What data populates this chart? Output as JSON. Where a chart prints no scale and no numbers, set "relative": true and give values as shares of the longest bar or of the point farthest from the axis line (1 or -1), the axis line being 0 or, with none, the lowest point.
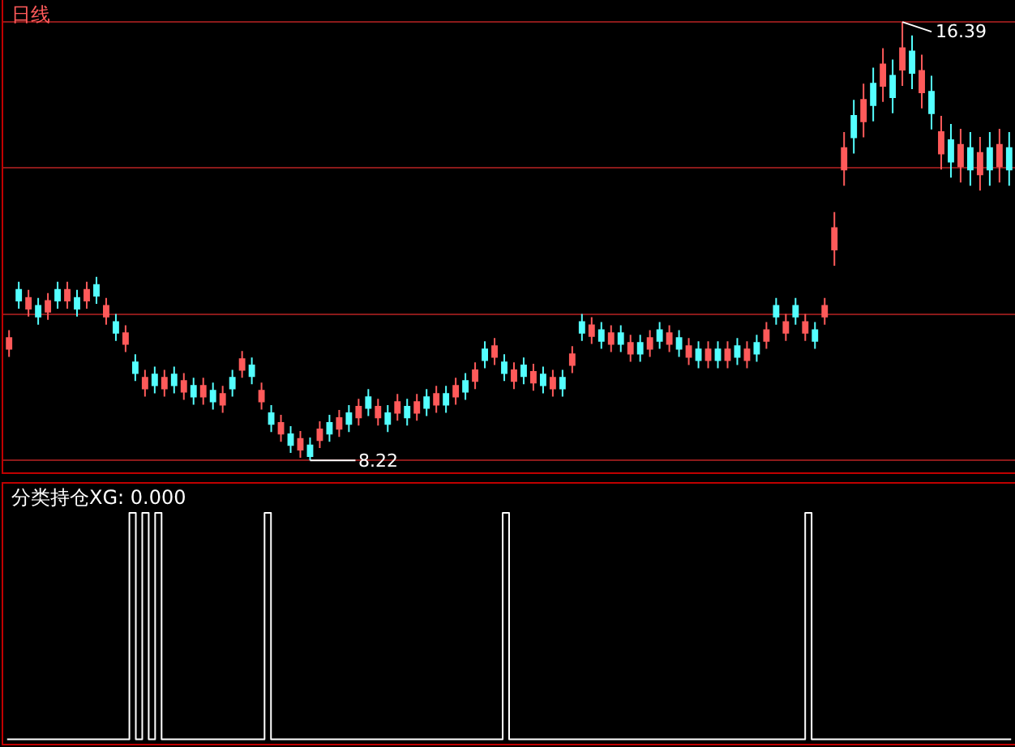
{
  "chart_data": [
    {
      "type": "candlestick",
      "title": "日线",
      "categories": [
        null,
        null,
        null,
        null,
        null,
        null,
        null,
        null,
        null,
        null,
        null,
        null,
        null,
        null,
        null,
        null,
        null,
        null,
        null,
        null,
        null,
        null,
        null,
        null,
        null,
        null,
        null,
        null,
        null,
        null,
        null,
        null,
        null,
        null,
        null,
        null,
        null,
        null,
        null,
        null,
        null,
        null,
        null,
        null,
        null,
        null,
        null,
        null,
        null,
        null,
        null,
        null,
        null,
        null,
        null,
        null,
        null,
        null,
        null,
        null,
        null,
        null,
        null,
        null,
        null,
        null,
        null,
        null,
        null,
        null,
        null,
        null,
        null,
        null,
        null,
        null,
        null,
        null,
        null,
        null,
        null,
        null,
        null,
        null,
        null,
        null,
        null,
        null,
        null,
        null,
        null,
        null,
        null,
        null,
        null,
        null,
        null,
        null,
        null,
        null,
        null,
        null,
        null,
        null
      ],
      "ohlc": [
        [
          10.3,
          10.65,
          10.15,
          10.5
        ],
        [
          11.4,
          11.55,
          11.05,
          11.2
        ],
        [
          11.05,
          11.4,
          10.9,
          11.25
        ],
        [
          11.1,
          11.25,
          10.75,
          10.9
        ],
        [
          10.99,
          11.34,
          10.84,
          11.19
        ],
        [
          11.4,
          11.55,
          11.05,
          11.2
        ],
        [
          11.2,
          11.55,
          11.05,
          11.4
        ],
        [
          11.25,
          11.4,
          10.9,
          11.05
        ],
        [
          11.2,
          11.55,
          11.05,
          11.4
        ],
        [
          11.49,
          11.64,
          11.14,
          11.29
        ],
        [
          10.9,
          11.25,
          10.75,
          11.1
        ],
        [
          10.8,
          10.95,
          10.45,
          10.6
        ],
        [
          10.39,
          10.74,
          10.24,
          10.59
        ],
        [
          10.05,
          10.2,
          9.7,
          9.85
        ],
        [
          9.56,
          9.91,
          9.41,
          9.76
        ],
        [
          9.82,
          9.97,
          9.47,
          9.62
        ],
        [
          9.56,
          9.91,
          9.41,
          9.76
        ],
        [
          9.82,
          9.97,
          9.47,
          9.62
        ],
        [
          9.5,
          9.85,
          9.35,
          9.7
        ],
        [
          9.61,
          9.76,
          9.26,
          9.41
        ],
        [
          9.41,
          9.76,
          9.26,
          9.61
        ],
        [
          9.52,
          9.67,
          9.17,
          9.32
        ],
        [
          9.26,
          9.61,
          9.11,
          9.46
        ],
        [
          9.76,
          9.91,
          9.41,
          9.56
        ],
        [
          9.91,
          10.26,
          9.76,
          10.11
        ],
        [
          9.99,
          10.14,
          9.64,
          9.79
        ],
        [
          9.32,
          9.67,
          9.17,
          9.52
        ],
        [
          9.1,
          9.25,
          8.75,
          8.9
        ],
        [
          8.72,
          9.07,
          8.57,
          8.92
        ],
        [
          8.71,
          8.86,
          8.36,
          8.51
        ],
        [
          8.42,
          8.77,
          8.27,
          8.62
        ],
        [
          8.5,
          8.65,
          8.22,
          8.3
        ],
        [
          8.6,
          8.95,
          8.45,
          8.8
        ],
        [
          8.92,
          9.07,
          8.57,
          8.72
        ],
        [
          8.81,
          9.16,
          8.66,
          9.01
        ],
        [
          9.1,
          9.25,
          8.75,
          8.9
        ],
        [
          9.02,
          9.37,
          8.87,
          9.22
        ],
        [
          9.4,
          9.55,
          9.05,
          9.2
        ],
        [
          9.02,
          9.37,
          8.87,
          9.22
        ],
        [
          9.1,
          9.25,
          8.75,
          8.9
        ],
        [
          9.11,
          9.46,
          8.96,
          9.31
        ],
        [
          9.22,
          9.37,
          8.87,
          9.02
        ],
        [
          9.11,
          9.46,
          8.96,
          9.31
        ],
        [
          9.4,
          9.55,
          9.05,
          9.2
        ],
        [
          9.26,
          9.61,
          9.11,
          9.46
        ],
        [
          9.46,
          9.61,
          9.11,
          9.26
        ],
        [
          9.41,
          9.76,
          9.26,
          9.61
        ],
        [
          9.7,
          9.85,
          9.35,
          9.5
        ],
        [
          9.7,
          10.05,
          9.55,
          9.9
        ],
        [
          10.29,
          10.44,
          9.94,
          10.09
        ],
        [
          10.15,
          10.5,
          10.0,
          10.35
        ],
        [
          10.05,
          10.2,
          9.7,
          9.85
        ],
        [
          9.7,
          10.05,
          9.55,
          9.9
        ],
        [
          9.99,
          10.14,
          9.64,
          9.79
        ],
        [
          9.67,
          10.02,
          9.52,
          9.87
        ],
        [
          9.82,
          9.97,
          9.47,
          9.62
        ],
        [
          9.56,
          9.91,
          9.41,
          9.76
        ],
        [
          9.76,
          9.91,
          9.41,
          9.56
        ],
        [
          10.0,
          10.35,
          9.85,
          10.2
        ],
        [
          10.8,
          10.95,
          10.45,
          10.6
        ],
        [
          10.54,
          10.89,
          10.39,
          10.74
        ],
        [
          10.65,
          10.8,
          10.3,
          10.45
        ],
        [
          10.39,
          10.74,
          10.24,
          10.59
        ],
        [
          10.59,
          10.74,
          10.24,
          10.39
        ],
        [
          10.21,
          10.56,
          10.06,
          10.41
        ],
        [
          10.41,
          10.56,
          10.06,
          10.21
        ],
        [
          10.3,
          10.65,
          10.15,
          10.5
        ],
        [
          10.65,
          10.8,
          10.3,
          10.45
        ],
        [
          10.39,
          10.74,
          10.24,
          10.59
        ],
        [
          10.5,
          10.65,
          10.15,
          10.3
        ],
        [
          10.15,
          10.5,
          10.0,
          10.35
        ],
        [
          10.29,
          10.44,
          9.94,
          10.09
        ],
        [
          10.09,
          10.44,
          9.94,
          10.29
        ],
        [
          10.29,
          10.44,
          9.94,
          10.09
        ],
        [
          10.09,
          10.44,
          9.94,
          10.29
        ],
        [
          10.35,
          10.5,
          10.0,
          10.15
        ],
        [
          10.09,
          10.44,
          9.94,
          10.29
        ],
        [
          10.41,
          10.56,
          10.06,
          10.21
        ],
        [
          10.45,
          10.8,
          10.3,
          10.65
        ],
        [
          11.1,
          11.25,
          10.75,
          10.9
        ],
        [
          10.6,
          10.95,
          10.45,
          10.8
        ],
        [
          11.1,
          11.25,
          10.75,
          10.9
        ],
        [
          10.6,
          10.95,
          10.45,
          10.8
        ],
        [
          10.65,
          10.8,
          10.3,
          10.45
        ],
        [
          10.9,
          11.25,
          10.75,
          11.1
        ],
        [
          12.15,
          12.85,
          11.85,
          12.55
        ],
        [
          13.64,
          14.34,
          13.34,
          14.04
        ],
        [
          14.64,
          14.94,
          13.94,
          14.24
        ],
        [
          14.54,
          15.24,
          14.24,
          14.94
        ],
        [
          15.24,
          15.54,
          14.54,
          14.84
        ],
        [
          15.2,
          15.9,
          14.9,
          15.6
        ],
        [
          15.39,
          15.69,
          14.69,
          14.99
        ],
        [
          15.5,
          16.39,
          15.2,
          15.9
        ],
        [
          15.84,
          16.14,
          15.14,
          15.44
        ],
        [
          15.08,
          15.78,
          14.78,
          15.48
        ],
        [
          15.09,
          15.39,
          14.39,
          14.69
        ],
        [
          13.94,
          14.64,
          13.64,
          14.34
        ],
        [
          14.19,
          14.49,
          13.49,
          13.79
        ],
        [
          13.7,
          14.4,
          13.4,
          14.1
        ],
        [
          14.04,
          14.34,
          13.34,
          13.64
        ],
        [
          13.55,
          14.25,
          13.25,
          13.95
        ],
        [
          14.04,
          14.34,
          13.34,
          13.64
        ],
        [
          13.7,
          14.4,
          13.4,
          14.1
        ],
        [
          14.04,
          14.34,
          13.34,
          13.64
        ]
      ],
      "ylim": [
        8.0,
        16.8
      ],
      "yticks": [
        {
          "value": 8.22,
          "label": null
        },
        {
          "value": 10.94,
          "label": null
        },
        {
          "value": 13.67,
          "label": null
        },
        {
          "value": 16.39,
          "label": null
        }
      ],
      "grid": "y",
      "annotations": [
        "16.39",
        "8.22"
      ]
    },
    {
      "type": "step",
      "title": "分类持仓XG: 0.000",
      "relative": true,
      "categories": [
        null,
        null,
        null,
        null,
        null,
        null,
        null,
        null,
        null,
        null,
        null,
        null,
        null,
        null,
        null,
        null,
        null,
        null,
        null,
        null,
        null,
        null,
        null,
        null,
        null,
        null,
        null,
        null,
        null,
        null,
        null,
        null,
        null,
        null,
        null,
        null,
        null,
        null,
        null,
        null,
        null,
        null,
        null,
        null,
        null,
        null,
        null,
        null,
        null,
        null,
        null,
        null,
        null,
        null,
        null,
        null,
        null,
        null,
        null,
        null,
        null,
        null,
        null,
        null,
        null,
        null,
        null,
        null,
        null,
        null,
        null,
        null,
        null,
        null,
        null,
        null,
        null,
        null,
        null,
        null,
        null,
        null,
        null,
        null,
        null,
        null,
        null,
        null,
        null,
        null,
        null,
        null,
        null,
        null,
        null,
        null,
        null,
        null,
        null,
        null,
        null,
        null,
        null,
        null,
        null,
        null,
        null,
        null,
        null,
        null,
        null,
        null,
        null,
        null,
        null,
        null,
        null,
        null,
        null,
        null,
        null,
        null,
        null,
        null,
        null,
        null,
        null,
        null,
        null,
        null,
        null,
        null,
        null,
        null,
        null,
        null,
        null,
        null,
        null,
        null,
        null,
        null,
        null,
        null,
        null,
        null,
        null,
        null,
        null,
        null,
        null,
        null,
        null,
        null,
        null,
        null,
        null
      ],
      "series": [
        {
          "color": "#ffffff",
          "values": [
            0,
            0,
            0,
            0,
            0,
            0,
            0,
            0,
            0,
            0,
            0,
            0,
            0,
            0,
            0,
            0,
            0,
            0,
            0,
            1,
            0,
            1,
            0,
            1,
            0,
            0,
            0,
            0,
            0,
            0,
            0,
            0,
            0,
            0,
            0,
            0,
            0,
            0,
            0,
            0,
            1,
            0,
            0,
            0,
            0,
            0,
            0,
            0,
            0,
            0,
            0,
            0,
            0,
            0,
            0,
            0,
            0,
            0,
            0,
            0,
            0,
            0,
            0,
            0,
            0,
            0,
            0,
            0,
            0,
            0,
            0,
            0,
            0,
            0,
            0,
            0,
            0,
            1,
            0,
            0,
            0,
            0,
            0,
            0,
            0,
            0,
            0,
            0,
            0,
            0,
            0,
            0,
            0,
            0,
            0,
            0,
            0,
            0,
            0,
            0,
            0,
            0,
            0,
            0,
            0,
            0,
            0,
            0,
            0,
            0,
            0,
            0,
            0,
            0,
            0,
            0,
            0,
            0,
            0,
            0,
            0,
            0,
            0,
            0,
            1,
            0,
            0,
            0,
            0,
            0,
            0,
            0,
            0,
            0,
            0,
            0,
            0,
            0,
            0,
            0,
            0,
            0,
            0,
            0,
            0,
            0,
            0,
            0,
            0,
            0,
            0,
            0,
            0,
            0,
            0,
            0,
            0
          ]
        }
      ]
    }
  ]
}
